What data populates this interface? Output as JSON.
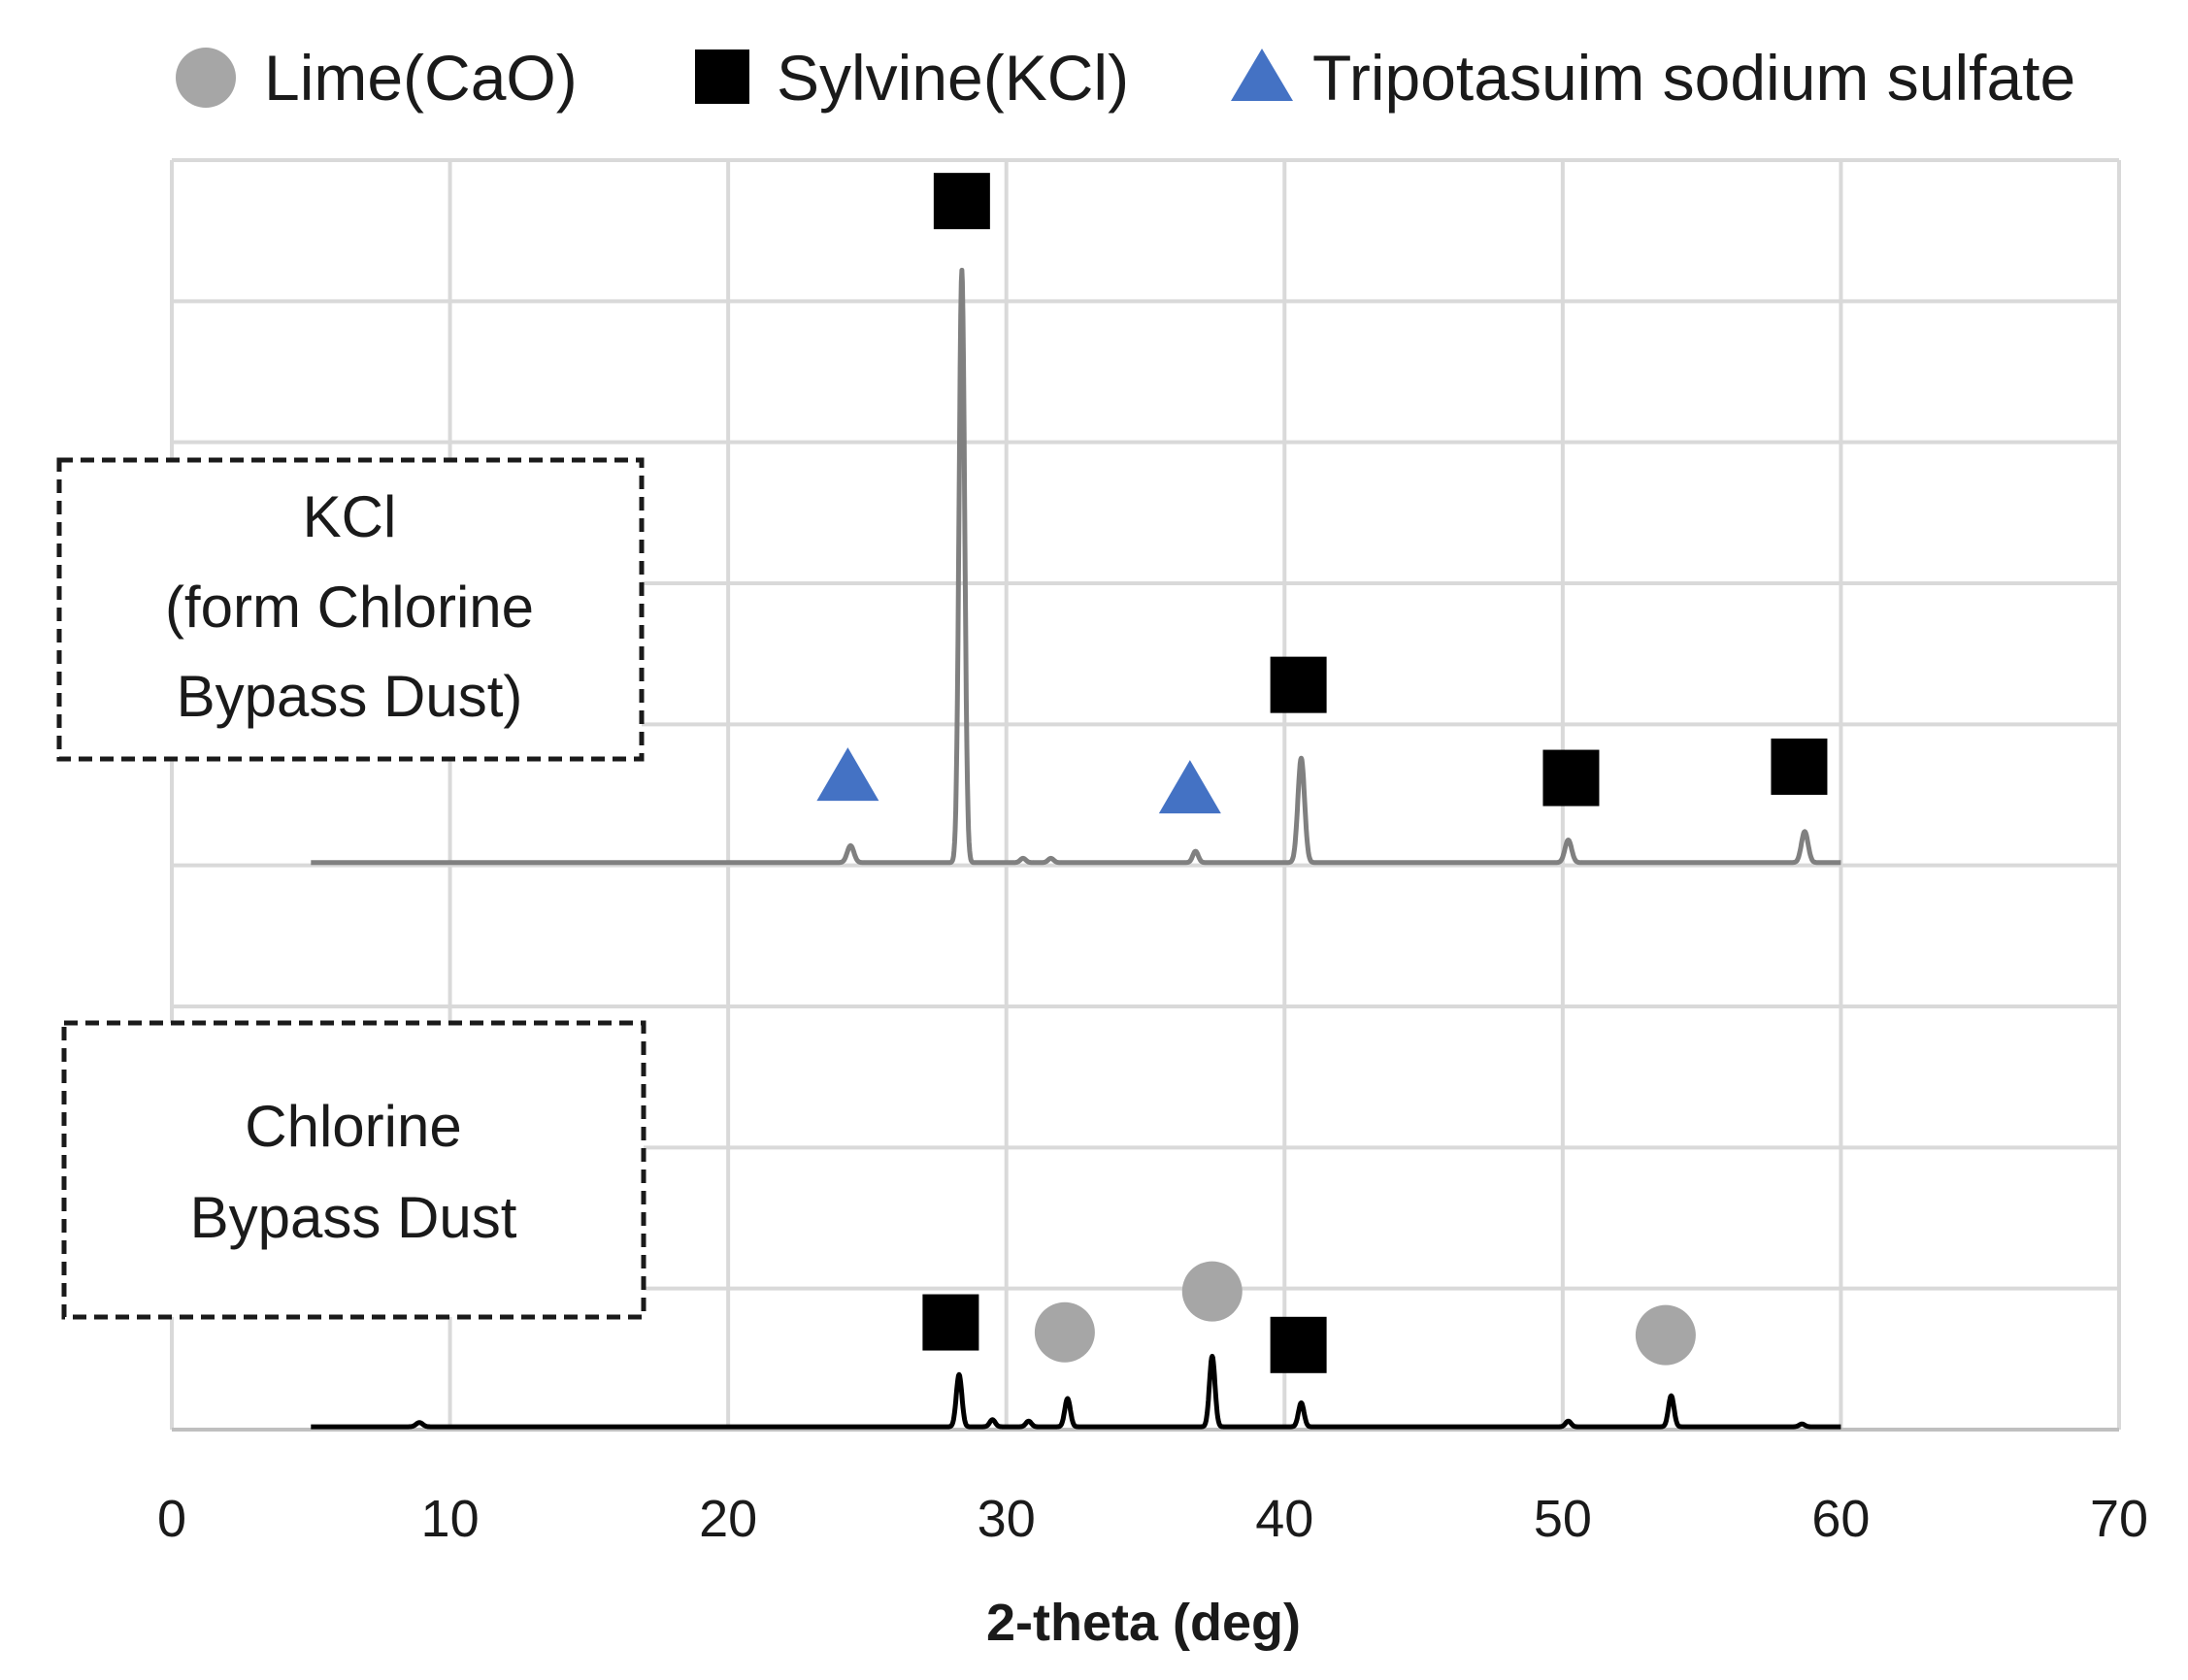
{
  "chart_data": {
    "type": "line",
    "title": "",
    "xlabel": "2-theta (deg)",
    "ylabel": "",
    "xlim": [
      0,
      70
    ],
    "xticks": [
      0,
      10,
      20,
      30,
      40,
      50,
      60,
      70
    ],
    "ylim": [
      0,
      9
    ],
    "grid": true,
    "legend": [
      {
        "label": "Lime(CaO)",
        "marker": "circle",
        "color": "#a6a6a6"
      },
      {
        "label": "Sylvine(KCl)",
        "marker": "square",
        "color": "#000000"
      },
      {
        "label": "Tripotasuim sodium sulfate",
        "marker": "triangle",
        "color": "#4472c4"
      }
    ],
    "series": [
      {
        "name": "KCl (form Chlorine Bypass Dust)",
        "label_lines": [
          "KCl",
          "(form Chlorine",
          "Bypass Dust)"
        ],
        "color": "#808080",
        "baseline": 4.02,
        "x_range": [
          5,
          60
        ],
        "peaks": [
          {
            "x": 24.4,
            "h": 0.12,
            "w": 0.12
          },
          {
            "x": 28.4,
            "h": 4.2,
            "w": 0.1
          },
          {
            "x": 30.6,
            "h": 0.03,
            "w": 0.1
          },
          {
            "x": 31.6,
            "h": 0.03,
            "w": 0.1
          },
          {
            "x": 36.8,
            "h": 0.08,
            "w": 0.1
          },
          {
            "x": 40.6,
            "h": 0.74,
            "w": 0.12
          },
          {
            "x": 50.2,
            "h": 0.16,
            "w": 0.12
          },
          {
            "x": 58.7,
            "h": 0.22,
            "w": 0.12
          }
        ],
        "markers": [
          {
            "type": "triangle",
            "x": 24.3,
            "y": 4.63
          },
          {
            "type": "square",
            "x": 28.4,
            "y": 8.71
          },
          {
            "type": "triangle",
            "x": 36.6,
            "y": 4.54
          },
          {
            "type": "square",
            "x": 40.5,
            "y": 5.28
          },
          {
            "type": "square",
            "x": 50.3,
            "y": 4.62
          },
          {
            "type": "square",
            "x": 58.5,
            "y": 4.7
          }
        ]
      },
      {
        "name": "Chlorine Bypass Dust",
        "label_lines": [
          "Chlorine",
          "Bypass Dust"
        ],
        "color": "#000000",
        "baseline": 0.02,
        "x_range": [
          5,
          60
        ],
        "peaks": [
          {
            "x": 8.9,
            "h": 0.03,
            "w": 0.12
          },
          {
            "x": 28.3,
            "h": 0.37,
            "w": 0.1
          },
          {
            "x": 29.5,
            "h": 0.05,
            "w": 0.1
          },
          {
            "x": 30.8,
            "h": 0.04,
            "w": 0.1
          },
          {
            "x": 32.2,
            "h": 0.2,
            "w": 0.1
          },
          {
            "x": 37.4,
            "h": 0.5,
            "w": 0.1
          },
          {
            "x": 40.6,
            "h": 0.17,
            "w": 0.1
          },
          {
            "x": 50.2,
            "h": 0.04,
            "w": 0.1
          },
          {
            "x": 53.9,
            "h": 0.22,
            "w": 0.1
          },
          {
            "x": 58.6,
            "h": 0.02,
            "w": 0.1
          }
        ],
        "markers": [
          {
            "type": "square",
            "x": 28.0,
            "y": 0.76
          },
          {
            "type": "circle",
            "x": 32.1,
            "y": 0.69
          },
          {
            "type": "circle",
            "x": 37.4,
            "y": 0.98
          },
          {
            "type": "square",
            "x": 40.5,
            "y": 0.6
          },
          {
            "type": "circle",
            "x": 53.7,
            "y": 0.67
          }
        ]
      }
    ]
  }
}
